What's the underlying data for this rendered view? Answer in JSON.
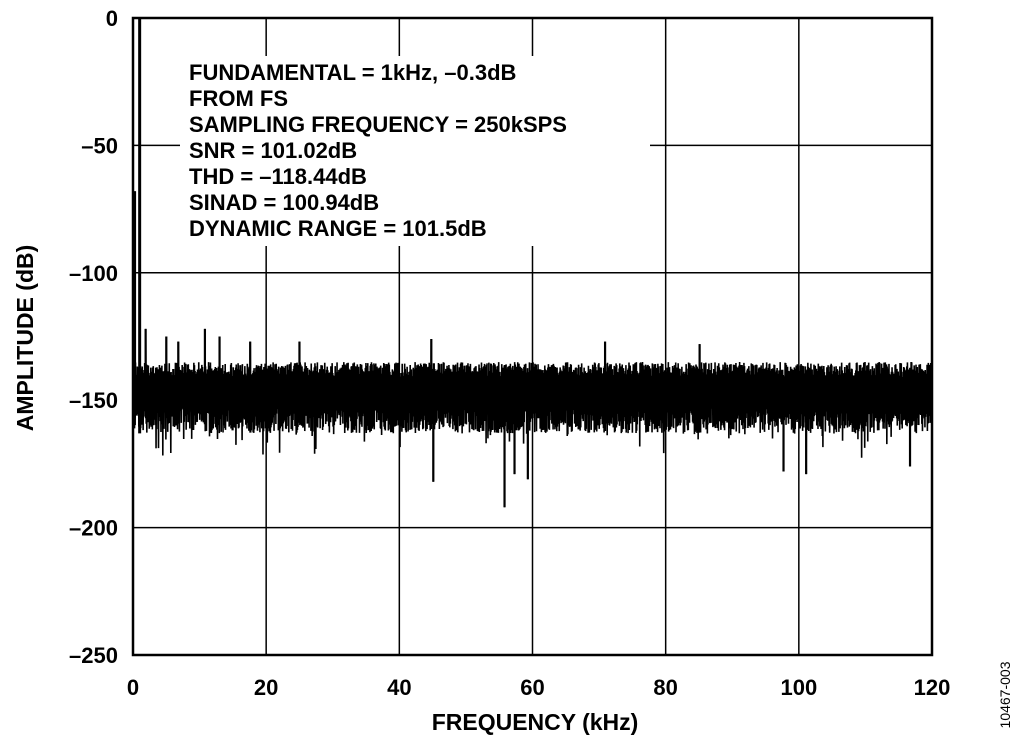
{
  "chart_data": {
    "type": "line",
    "title": "",
    "xlabel": "FREQUENCY (kHz)",
    "ylabel": "AMPLITUDE (dB)",
    "xlim": [
      0,
      120
    ],
    "ylim": [
      -250,
      0
    ],
    "x_ticks": [
      0,
      20,
      40,
      60,
      80,
      100,
      120
    ],
    "y_ticks": [
      0,
      -50,
      -100,
      -150,
      -200,
      -250
    ],
    "x_tick_labels": [
      "0",
      "20",
      "40",
      "60",
      "80",
      "100",
      "120"
    ],
    "y_tick_labels": [
      "0",
      "–50",
      "–100",
      "–150",
      "–200",
      "–250"
    ],
    "grid": true,
    "legend": "none",
    "line_color": "#000000",
    "annotations": [
      "FUNDAMENTAL = 1kHz, –0.3dB",
      "FROM FS",
      "SAMPLING FREQUENCY = 250kSPS",
      "SNR = 101.02dB",
      "THD = –118.44dB",
      "SINAD = 100.94dB",
      "DYNAMIC RANGE = 101.5dB"
    ],
    "series": [
      {
        "fundamental": {
          "x": 1,
          "y": -0.3
        },
        "noise_floor": {
          "band_top": -135,
          "band_bottom": -163,
          "center": -148
        },
        "spurs_up": [
          {
            "x": 0.3,
            "y": -68
          },
          {
            "x": 1.9,
            "y": -122
          },
          {
            "x": 5.0,
            "y": -125
          },
          {
            "x": 6.8,
            "y": -127
          },
          {
            "x": 10.8,
            "y": -122
          },
          {
            "x": 13.0,
            "y": -125
          },
          {
            "x": 17.6,
            "y": -127
          },
          {
            "x": 25.0,
            "y": -127
          },
          {
            "x": 44.8,
            "y": -126
          },
          {
            "x": 70.9,
            "y": -127
          },
          {
            "x": 85.1,
            "y": -128
          }
        ],
        "spurs_down": [
          {
            "x": 45.1,
            "y": -182
          },
          {
            "x": 55.8,
            "y": -192
          },
          {
            "x": 57.3,
            "y": -179
          },
          {
            "x": 59.3,
            "y": -181
          },
          {
            "x": 97.7,
            "y": -178
          },
          {
            "x": 101.1,
            "y": -179
          },
          {
            "x": 116.7,
            "y": -176
          }
        ]
      }
    ]
  },
  "figure_id": "10467-003"
}
